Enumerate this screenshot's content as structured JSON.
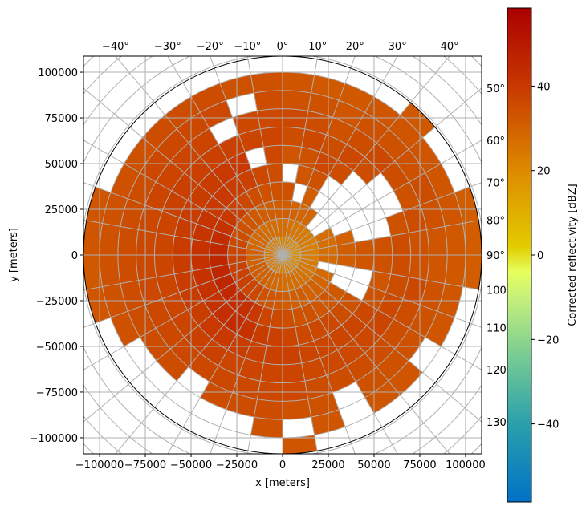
{
  "chart_data": {
    "type": "heatmap",
    "subtype": "polar radar PPI",
    "xlabel": "x [meters]",
    "ylabel": "y [meters]",
    "xlim": [
      -108800,
      108800
    ],
    "ylim": [
      -108800,
      108800
    ],
    "max_range_m": 108800,
    "grid": true,
    "x_ticks": [
      "−100000",
      "−75000",
      "−50000",
      "−25000",
      "0",
      "25000",
      "50000",
      "75000",
      "100000"
    ],
    "x_tick_values": [
      -100000,
      -75000,
      -50000,
      -25000,
      0,
      25000,
      50000,
      75000,
      100000
    ],
    "y_ticks": [
      "100000",
      "75000",
      "50000",
      "25000",
      "0",
      "−25000",
      "−50000",
      "−75000",
      "−100000"
    ],
    "y_tick_values": [
      100000,
      75000,
      50000,
      25000,
      0,
      -25000,
      -50000,
      -75000,
      -100000
    ],
    "azimuth_top_labels": [
      "−40°",
      "−30°",
      "−20°",
      "−10°",
      "0°",
      "10°",
      "20°",
      "30°",
      "40°"
    ],
    "azimuth_top_values": [
      -40,
      -30,
      -20,
      -10,
      0,
      10,
      20,
      30,
      40
    ],
    "azimuth_right_labels": [
      "50°",
      "60°",
      "70°",
      "80°",
      "90°",
      "100°",
      "110°",
      "120°",
      "130°"
    ],
    "azimuth_right_values": [
      50,
      60,
      70,
      80,
      90,
      100,
      110,
      120,
      130
    ],
    "range_ring_spacing_m": 10000,
    "azimuth_line_spacing_deg": 10,
    "azimuth_bin_deg": 10,
    "range_bin_m": 10000,
    "reflectivity_dBZ": [
      [
        22,
        27,
        31,
        34,
        null,
        33,
        35,
        36,
        34,
        33,
        null
      ],
      [
        22,
        26,
        30,
        null,
        33,
        34,
        36,
        35,
        34,
        32,
        null
      ],
      [
        21,
        25,
        29,
        31,
        34,
        36,
        35,
        34,
        33,
        32,
        null
      ],
      [
        21,
        25,
        29,
        null,
        null,
        35,
        36,
        35,
        34,
        33,
        null
      ],
      [
        20,
        24,
        null,
        null,
        null,
        null,
        35,
        36,
        34,
        33,
        32
      ],
      [
        20,
        24,
        null,
        null,
        null,
        null,
        null,
        35,
        34,
        33,
        null
      ],
      [
        20,
        23,
        27,
        null,
        null,
        null,
        null,
        34,
        35,
        33,
        null
      ],
      [
        19,
        23,
        27,
        30,
        null,
        null,
        34,
        35,
        34,
        33,
        31
      ],
      [
        19,
        23,
        27,
        31,
        33,
        34,
        35,
        34,
        33,
        32,
        31
      ],
      [
        19,
        23,
        28,
        31,
        33,
        34,
        35,
        34,
        33,
        32,
        31
      ],
      [
        20,
        24,
        null,
        null,
        null,
        33,
        35,
        36,
        34,
        33,
        null
      ],
      [
        20,
        24,
        28,
        null,
        null,
        34,
        36,
        35,
        34,
        33,
        null
      ],
      [
        21,
        25,
        29,
        32,
        34,
        36,
        37,
        35,
        34,
        null,
        null
      ],
      [
        21,
        26,
        30,
        33,
        35,
        37,
        36,
        35,
        34,
        33,
        null
      ],
      [
        22,
        26,
        30,
        33,
        36,
        37,
        36,
        35,
        34,
        33,
        null
      ],
      [
        22,
        27,
        31,
        34,
        36,
        37,
        36,
        35,
        null,
        null,
        null
      ],
      [
        22,
        27,
        31,
        34,
        36,
        37,
        36,
        35,
        34,
        33,
        null
      ],
      [
        22,
        27,
        31,
        35,
        37,
        38,
        37,
        36,
        34,
        null,
        33
      ],
      [
        23,
        28,
        32,
        36,
        38,
        38,
        37,
        36,
        35,
        34,
        null
      ],
      [
        23,
        28,
        33,
        37,
        39,
        38,
        37,
        36,
        35,
        null,
        null
      ],
      [
        24,
        29,
        34,
        40,
        42,
        39,
        37,
        36,
        35,
        null,
        null
      ],
      [
        24,
        30,
        36,
        43,
        44,
        40,
        38,
        36,
        null,
        null,
        null
      ],
      [
        24,
        30,
        37,
        44,
        43,
        40,
        38,
        36,
        35,
        null,
        null
      ],
      [
        24,
        31,
        38,
        45,
        42,
        39,
        37,
        36,
        35,
        null,
        null
      ],
      [
        24,
        31,
        38,
        46,
        42,
        39,
        37,
        36,
        35,
        34,
        null
      ],
      [
        24,
        30,
        38,
        46,
        42,
        39,
        37,
        36,
        35,
        34,
        33
      ],
      [
        24,
        30,
        38,
        46,
        42,
        39,
        37,
        36,
        35,
        34,
        32
      ],
      [
        24,
        30,
        37,
        45,
        42,
        39,
        37,
        36,
        35,
        34,
        33
      ],
      [
        24,
        29,
        36,
        44,
        41,
        39,
        37,
        36,
        35,
        34,
        33
      ],
      [
        23,
        28,
        35,
        42,
        41,
        39,
        38,
        37,
        35,
        34,
        null
      ],
      [
        23,
        28,
        34,
        40,
        40,
        39,
        38,
        37,
        36,
        34,
        null
      ],
      [
        23,
        28,
        33,
        38,
        40,
        39,
        38,
        37,
        36,
        35,
        null
      ],
      [
        23,
        27,
        32,
        36,
        39,
        40,
        38,
        37,
        36,
        35,
        null
      ],
      [
        22,
        27,
        31,
        35,
        38,
        40,
        38,
        null,
        36,
        35,
        null
      ],
      [
        22,
        27,
        31,
        34,
        36,
        null,
        37,
        36,
        null,
        34,
        null
      ],
      [
        22,
        27,
        31,
        34,
        35,
        36,
        37,
        36,
        35,
        34,
        null
      ]
    ],
    "colorbar": {
      "label": "Corrected reflectivity [dBZ]",
      "range": [
        -58.5,
        58.5
      ],
      "ticks": [
        "−40",
        "−20",
        "0",
        "20",
        "40"
      ],
      "tick_values": [
        -40,
        -20,
        0,
        20,
        40
      ],
      "colormap_stops": [
        {
          "v": -58.5,
          "c": "#0072c6"
        },
        {
          "v": -40,
          "c": "#2aa0ac"
        },
        {
          "v": -25,
          "c": "#73c996"
        },
        {
          "v": -10,
          "c": "#c6f07a"
        },
        {
          "v": -4,
          "c": "#e6ff5c"
        },
        {
          "v": 2,
          "c": "#e2cc00"
        },
        {
          "v": 20,
          "c": "#dd8a00"
        },
        {
          "v": 40,
          "c": "#c83800"
        },
        {
          "v": 58.5,
          "c": "#aa0000"
        }
      ]
    }
  }
}
